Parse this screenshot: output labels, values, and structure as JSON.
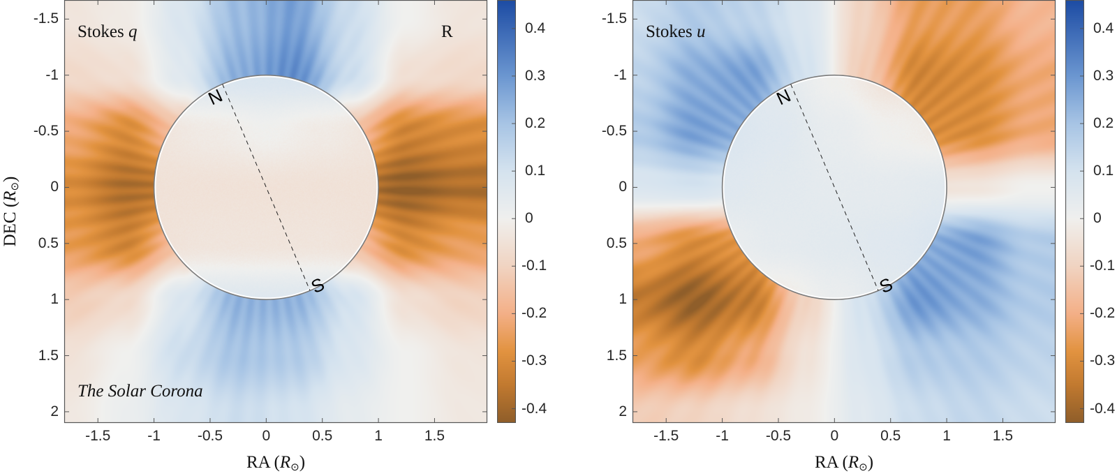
{
  "axis_labels": {
    "x_name": "RA",
    "y_name": "DEC",
    "unit": "R",
    "unit_sub": "⊙"
  },
  "chart_data": [
    {
      "type": "heatmap",
      "panel_label": "Stokes",
      "panel_var": "q",
      "corner_label": "R",
      "footer_label": "The Solar Corona",
      "xlabel": "RA (R⊙)",
      "ylabel": "DEC (R⊙)",
      "xlim": [
        -1.8,
        1.97
      ],
      "ylim": [
        -1.67,
        2.1
      ],
      "y_reversed": true,
      "xticks": [
        -1.5,
        -1,
        -0.5,
        0,
        0.5,
        1,
        1.5
      ],
      "xtick_labels": [
        "-1.5",
        "-1",
        "-0.5",
        "0",
        "0.5",
        "1",
        "1.5"
      ],
      "yticks": [
        -1.5,
        -1,
        -0.5,
        0,
        0.5,
        1,
        1.5,
        2
      ],
      "ytick_labels": [
        "-1.5",
        "-1",
        "-0.5",
        "0",
        "0.5",
        "1",
        "1.5",
        "2"
      ],
      "colorbar": {
        "range": [
          -0.43,
          0.46
        ],
        "ticks": [
          0.4,
          0.3,
          0.2,
          0.1,
          0,
          -0.1,
          -0.2,
          -0.3,
          -0.4
        ],
        "tick_labels": [
          "0.4",
          "0.3",
          "0.2",
          "0.1",
          "0",
          "-0.1",
          "-0.2",
          "-0.3",
          "-0.4"
        ]
      },
      "grid_x": [
        -1.75,
        -1.25,
        -0.75,
        -0.25,
        0.25,
        0.75,
        1.25,
        1.75
      ],
      "grid_y": [
        -1.5,
        -1,
        -0.5,
        0,
        0.5,
        1,
        1.5,
        2
      ],
      "corona_values": [
        [
          -0.04,
          -0.02,
          0.08,
          0.22,
          0.28,
          0.12,
          0.0,
          -0.04
        ],
        [
          -0.08,
          -0.06,
          0.06,
          0.25,
          0.32,
          0.12,
          -0.06,
          -0.08
        ],
        [
          -0.22,
          -0.3,
          -0.15,
          0.15,
          0.18,
          -0.15,
          -0.32,
          -0.3
        ],
        [
          -0.3,
          -0.38,
          -0.35,
          -0.1,
          -0.1,
          -0.35,
          -0.42,
          -0.38
        ],
        [
          -0.26,
          -0.32,
          -0.15,
          0.12,
          0.12,
          -0.15,
          -0.3,
          -0.25
        ],
        [
          -0.12,
          -0.08,
          0.08,
          0.24,
          0.24,
          0.1,
          -0.06,
          -0.1
        ],
        [
          -0.05,
          0.0,
          0.12,
          0.2,
          0.18,
          0.08,
          0.0,
          -0.04
        ],
        [
          -0.03,
          0.02,
          0.08,
          0.12,
          0.1,
          0.04,
          0.0,
          -0.03
        ]
      ],
      "disk_grid": [
        -1,
        -0.5,
        0,
        0.5,
        1
      ],
      "disk_values": [
        [
          0.08,
          0.08,
          0.08,
          0.08,
          0.08
        ],
        [
          -0.04,
          -0.02,
          0.0,
          -0.02,
          -0.04
        ],
        [
          -0.05,
          -0.05,
          -0.05,
          -0.05,
          -0.05
        ],
        [
          -0.05,
          -0.04,
          -0.04,
          -0.04,
          -0.05
        ],
        [
          0.06,
          0.06,
          0.06,
          0.06,
          0.06
        ]
      ],
      "limb_radius": 1,
      "north_label": "N",
      "south_label": "S",
      "ns_axis": [
        [
          -0.39,
          -0.92
        ],
        [
          0.39,
          0.92
        ]
      ]
    },
    {
      "type": "heatmap",
      "panel_label": "Stokes",
      "panel_var": "u",
      "xlabel": "RA (R⊙)",
      "ylabel": "",
      "xlim": [
        -1.8,
        1.97
      ],
      "ylim": [
        -1.67,
        2.1
      ],
      "y_reversed": true,
      "xticks": [
        -1.5,
        -1,
        -0.5,
        0,
        0.5,
        1,
        1.5
      ],
      "xtick_labels": [
        "-1.5",
        "-1",
        "-0.5",
        "0",
        "0.5",
        "1",
        "1.5"
      ],
      "yticks": [
        -1.5,
        -1,
        -0.5,
        0,
        0.5,
        1,
        1.5,
        2
      ],
      "ytick_labels": [
        "-1.5",
        "-1",
        "-0.5",
        "0",
        "0.5",
        "1",
        "1.5",
        "2"
      ],
      "colorbar": {
        "range": [
          -0.43,
          0.46
        ],
        "ticks": [
          0.4,
          0.3,
          0.2,
          0.1,
          0,
          -0.1,
          -0.2,
          -0.3,
          -0.4
        ],
        "tick_labels": [
          "0.4",
          "0.3",
          "0.2",
          "0.1",
          "0",
          "-0.1",
          "-0.2",
          "-0.3",
          "-0.4"
        ]
      },
      "grid_x": [
        -1.75,
        -1.25,
        -0.75,
        -0.25,
        0.25,
        0.75,
        1.25,
        1.75
      ],
      "grid_y": [
        -1.5,
        -1,
        -0.5,
        0,
        0.5,
        1,
        1.5,
        2
      ],
      "corona_values": [
        [
          0.12,
          0.18,
          0.15,
          0.08,
          -0.1,
          -0.25,
          -0.25,
          -0.18
        ],
        [
          0.15,
          0.25,
          0.28,
          0.1,
          -0.12,
          -0.32,
          -0.3,
          -0.22
        ],
        [
          0.18,
          0.28,
          0.25,
          0.08,
          -0.08,
          -0.3,
          -0.3,
          -0.22
        ],
        [
          0.08,
          0.1,
          0.06,
          0.02,
          0.0,
          -0.05,
          -0.04,
          0.0
        ],
        [
          -0.22,
          -0.3,
          -0.28,
          -0.08,
          0.08,
          0.25,
          0.28,
          0.18
        ],
        [
          -0.35,
          -0.42,
          -0.35,
          -0.1,
          0.1,
          0.3,
          0.25,
          0.18
        ],
        [
          -0.25,
          -0.3,
          -0.22,
          -0.05,
          0.08,
          0.18,
          0.18,
          0.15
        ],
        [
          -0.12,
          -0.1,
          -0.06,
          -0.02,
          0.06,
          0.12,
          0.14,
          0.12
        ]
      ],
      "disk_grid": [
        -1,
        -0.5,
        0,
        0.5,
        1
      ],
      "disk_values": [
        [
          0.05,
          0.05,
          0.0,
          -0.05,
          -0.05
        ],
        [
          0.08,
          0.06,
          0.03,
          0.0,
          -0.02
        ],
        [
          0.06,
          0.05,
          0.04,
          0.04,
          0.05
        ],
        [
          0.02,
          0.04,
          0.05,
          0.06,
          0.08
        ],
        [
          -0.04,
          -0.02,
          0.02,
          0.05,
          0.06
        ]
      ],
      "limb_radius": 1,
      "north_label": "N",
      "south_label": "S",
      "ns_axis": [
        [
          -0.39,
          -0.92
        ],
        [
          0.39,
          0.92
        ]
      ]
    }
  ],
  "colormap": [
    [
      -0.43,
      "#8f5e2a"
    ],
    [
      -0.35,
      "#c27a30"
    ],
    [
      -0.28,
      "#e29340"
    ],
    [
      -0.2,
      "#f4b088"
    ],
    [
      -0.1,
      "#f1d4c2"
    ],
    [
      0,
      "#f0f0ee"
    ],
    [
      0.1,
      "#d5e3ef"
    ],
    [
      0.2,
      "#a8c5e5"
    ],
    [
      0.3,
      "#6c97d1"
    ],
    [
      0.46,
      "#1d4ca4"
    ]
  ],
  "colors": {
    "axis": "#555555",
    "limb": "#7a7a7a"
  }
}
